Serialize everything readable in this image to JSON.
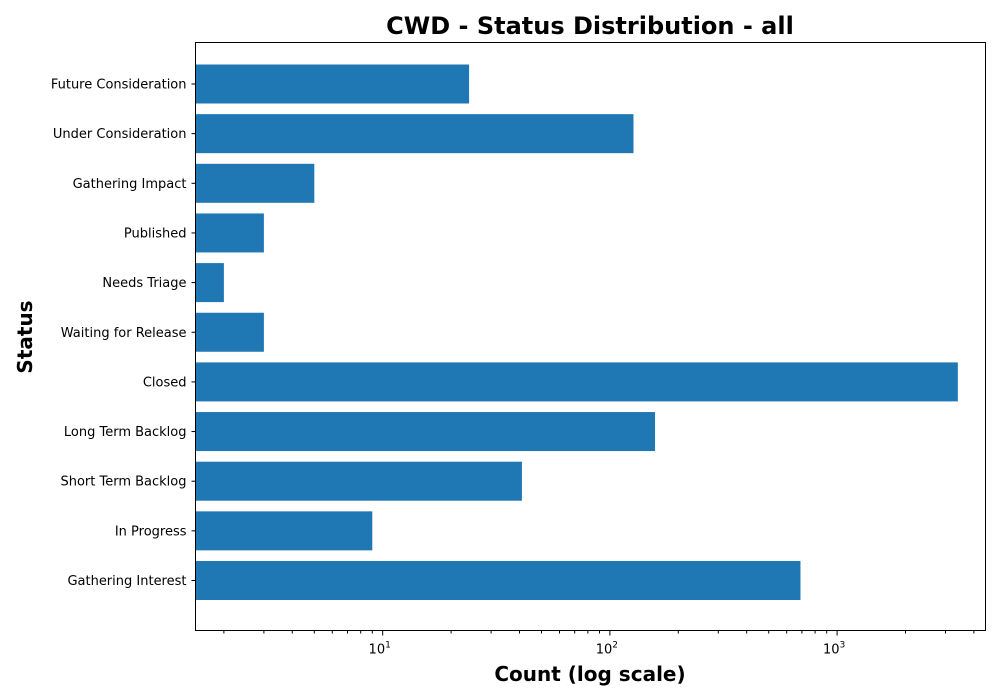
{
  "chart_data": {
    "type": "bar",
    "orientation": "horizontal",
    "title": "CWD - Status Distribution - all",
    "xlabel": "Count (log scale)",
    "ylabel": "Status",
    "x_scale": "log",
    "xlim": [
      1.5,
      4500
    ],
    "x_ticks": [
      {
        "value": 10,
        "base": "10",
        "exp": "1"
      },
      {
        "value": 100,
        "base": "10",
        "exp": "2"
      },
      {
        "value": 1000,
        "base": "10",
        "exp": "3"
      }
    ],
    "categories": [
      "Future Consideration",
      "Under Consideration",
      "Gathering Impact",
      "Published",
      "Needs Triage",
      "Waiting for Release",
      "Closed",
      "Long Term Backlog",
      "Short Term Backlog",
      "In Progress",
      "Gathering Interest"
    ],
    "values": [
      24,
      127,
      5,
      3,
      2,
      3,
      3400,
      158,
      41,
      9,
      690
    ],
    "bar_color": "#1f77b4",
    "grid": false,
    "legend": "none"
  }
}
